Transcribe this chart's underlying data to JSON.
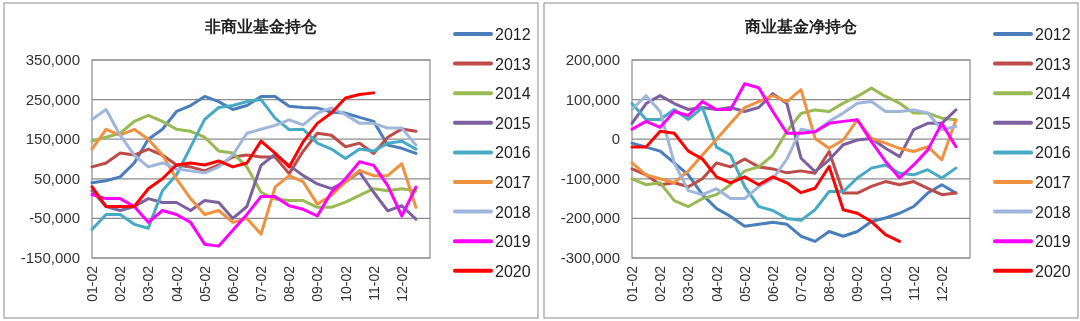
{
  "chart_data": [
    {
      "type": "line",
      "title": "非商业基金持仓",
      "grid": "y",
      "legend": "right",
      "categories": [
        "01-02",
        null,
        "02-02",
        null,
        "03-02",
        null,
        "04-02",
        null,
        "05-02",
        null,
        "06-02",
        null,
        "07-02",
        null,
        "08-02",
        null,
        "09-02",
        null,
        "10-02",
        null,
        "11-02",
        null,
        "12-02",
        null
      ],
      "ylim": [
        -150000,
        350000
      ],
      "yticks": [
        {
          "value": -150000,
          "label": "-150,000"
        },
        {
          "value": -50000,
          "label": "-50,000"
        },
        {
          "value": 50000,
          "label": "50,000"
        },
        {
          "value": 150000,
          "label": "150,000"
        },
        {
          "value": 250000,
          "label": "250,000"
        },
        {
          "value": 350000,
          "label": "350,000"
        }
      ],
      "series": [
        {
          "name": "2012",
          "color": "#4a7ebb",
          "values": [
            40000,
            45000,
            55000,
            90000,
            150000,
            175000,
            220000,
            235000,
            258000,
            245000,
            225000,
            235000,
            258000,
            258000,
            233000,
            230000,
            229000,
            218000,
            216000,
            205000,
            195000,
            135000,
            127000,
            114000
          ]
        },
        {
          "name": "2013",
          "color": "#be4b48",
          "values": [
            80000,
            90000,
            115000,
            110000,
            125000,
            110000,
            85000,
            80000,
            70000,
            85000,
            105000,
            110000,
            105000,
            105000,
            63000,
            120000,
            165000,
            160000,
            131000,
            140000,
            114000,
            155000,
            176000,
            170000
          ]
        },
        {
          "name": "2014",
          "color": "#98b954",
          "values": [
            145000,
            155000,
            165000,
            195000,
            210000,
            195000,
            175000,
            170000,
            155000,
            120000,
            115000,
            80000,
            16000,
            -1000,
            -5000,
            -5000,
            -22000,
            -22000,
            -9000,
            8000,
            25000,
            20000,
            25000,
            20000
          ]
        },
        {
          "name": "2015",
          "color": "#7d60a0",
          "values": [
            20000,
            -20000,
            -30000,
            -20000,
            0,
            -10000,
            -10000,
            -30000,
            -5000,
            -10000,
            -50000,
            -20000,
            84000,
            112000,
            84000,
            58000,
            37000,
            25000,
            42000,
            67000,
            16000,
            -31000,
            -18000,
            -52000
          ]
        },
        {
          "name": "2016",
          "color": "#46aac5",
          "values": [
            -78000,
            -40000,
            -40000,
            -65000,
            -75000,
            20000,
            60000,
            130000,
            200000,
            230000,
            235000,
            245000,
            250000,
            203000,
            174000,
            175000,
            140000,
            125000,
            101000,
            125000,
            120000,
            140000,
            145000,
            125000
          ]
        },
        {
          "name": "2017",
          "color": "#f0913f",
          "values": [
            125000,
            175000,
            160000,
            175000,
            150000,
            110000,
            50000,
            0,
            -40000,
            -30000,
            -60000,
            -50000,
            -90000,
            29000,
            58000,
            42000,
            -14000,
            8000,
            42000,
            71000,
            58000,
            58000,
            88000,
            -22000
          ]
        },
        {
          "name": "2018",
          "color": "#9fb6dc",
          "values": [
            200000,
            225000,
            160000,
            110000,
            80000,
            90000,
            75000,
            70000,
            65000,
            80000,
            110000,
            165000,
            175000,
            185000,
            199000,
            186000,
            216000,
            229000,
            212000,
            190000,
            190000,
            178000,
            178000,
            135000
          ]
        },
        {
          "name": "2019",
          "color": "#ff00ff",
          "values": [
            10000,
            0,
            0,
            -20000,
            -60000,
            -30000,
            -40000,
            -60000,
            -115000,
            -120000,
            -80000,
            -40000,
            5000,
            5000,
            -18000,
            -27000,
            -44000,
            16000,
            50000,
            93000,
            84000,
            33000,
            -44000,
            29000
          ]
        },
        {
          "name": "2020",
          "color": "#ff0000",
          "values": [
            30000,
            -20000,
            -20000,
            -20000,
            25000,
            50000,
            85000,
            90000,
            85000,
            95000,
            80000,
            90000,
            145000,
            115000,
            80000,
            144000,
            190000,
            216000,
            254000,
            263000,
            267000,
            null,
            null,
            null
          ]
        }
      ]
    },
    {
      "type": "line",
      "title": "商业基金净持仓",
      "grid": "y",
      "legend": "right",
      "categories": [
        "01-02",
        null,
        "02-02",
        null,
        "03-02",
        null,
        "04-02",
        null,
        "05-02",
        null,
        "06-02",
        null,
        "07-02",
        null,
        "08-02",
        null,
        "09-02",
        null,
        "10-02",
        null,
        "11-02",
        null,
        "12-02",
        null
      ],
      "ylim": [
        -300000,
        200000
      ],
      "yticks": [
        {
          "value": -300000,
          "label": "-300,000"
        },
        {
          "value": -200000,
          "label": "-200,000"
        },
        {
          "value": -100000,
          "label": "-100,000"
        },
        0,
        {
          "value": 100000,
          "label": "100,000"
        },
        {
          "value": 200000,
          "label": "200,000"
        }
      ],
      "series": [
        {
          "name": "2012",
          "color": "#4a7ebb",
          "values": [
            -10000,
            -20000,
            -30000,
            -60000,
            -90000,
            -140000,
            -175000,
            -195000,
            -220000,
            -215000,
            -210000,
            -215000,
            -245000,
            -258000,
            -233000,
            -245000,
            -233000,
            -208000,
            -199000,
            -187000,
            -170000,
            -136000,
            -115000,
            -136000
          ]
        },
        {
          "name": "2013",
          "color": "#be4b48",
          "values": [
            -75000,
            -90000,
            -115000,
            -110000,
            -120000,
            -100000,
            -60000,
            -70000,
            -50000,
            -70000,
            -75000,
            -85000,
            -80000,
            -86000,
            -31000,
            -136000,
            -136000,
            -119000,
            -107000,
            -115000,
            -107000,
            -124000,
            -140000,
            -136000
          ]
        },
        {
          "name": "2014",
          "color": "#98b954",
          "values": [
            -100000,
            -115000,
            -110000,
            -155000,
            -170000,
            -150000,
            -140000,
            -115000,
            -80000,
            -70000,
            -40000,
            20000,
            65000,
            74000,
            70000,
            91000,
            108000,
            129000,
            108000,
            91000,
            66000,
            66000,
            53000,
            49000
          ]
        },
        {
          "name": "2015",
          "color": "#7d60a0",
          "values": [
            40000,
            90000,
            110000,
            90000,
            75000,
            80000,
            75000,
            80000,
            70000,
            80000,
            115000,
            90000,
            -48000,
            -82000,
            -52000,
            -14000,
            -2000,
            2000,
            -23000,
            -44000,
            24000,
            40000,
            40000,
            74000
          ]
        },
        {
          "name": "2016",
          "color": "#46aac5",
          "values": [
            90000,
            50000,
            50000,
            75000,
            50000,
            80000,
            -20000,
            -40000,
            -120000,
            -170000,
            -180000,
            -200000,
            -205000,
            -178000,
            -132000,
            -132000,
            -98000,
            -73000,
            -65000,
            -86000,
            -90000,
            -77000,
            -98000,
            -73000
          ]
        },
        {
          "name": "2017",
          "color": "#f0913f",
          "values": [
            -60000,
            -90000,
            -100000,
            -110000,
            -80000,
            -40000,
            0,
            40000,
            80000,
            95000,
            110000,
            95000,
            125000,
            2000,
            -23000,
            -2000,
            49000,
            2000,
            -10000,
            -23000,
            -31000,
            -19000,
            -52000,
            49000
          ]
        },
        {
          "name": "2018",
          "color": "#9fb6dc",
          "values": [
            75000,
            110000,
            70000,
            -60000,
            -130000,
            -140000,
            -125000,
            -150000,
            -150000,
            -120000,
            -100000,
            -50000,
            25000,
            19000,
            45000,
            66000,
            91000,
            95000,
            70000,
            70000,
            74000,
            66000,
            24000,
            32000
          ]
        },
        {
          "name": "2019",
          "color": "#ff00ff",
          "values": [
            25000,
            45000,
            30000,
            70000,
            60000,
            95000,
            75000,
            75000,
            140000,
            130000,
            70000,
            15000,
            15000,
            19000,
            40000,
            45000,
            49000,
            -6000,
            -56000,
            -98000,
            -65000,
            -27000,
            40000,
            -19000
          ]
        },
        {
          "name": "2020",
          "color": "#ff0000",
          "values": [
            -20000,
            -20000,
            20000,
            15000,
            -30000,
            -50000,
            -95000,
            -110000,
            -95000,
            -115000,
            -95000,
            -110000,
            -135000,
            -124000,
            -69000,
            -178000,
            -187000,
            -208000,
            -241000,
            -258000,
            null,
            null,
            null,
            null
          ]
        }
      ]
    }
  ]
}
